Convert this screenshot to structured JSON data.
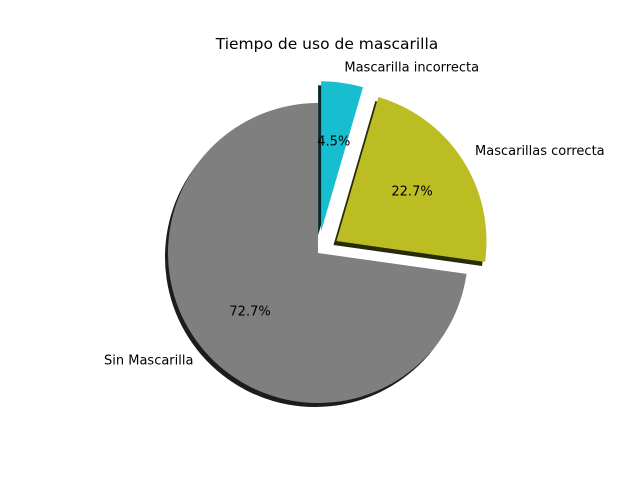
{
  "chart_data": {
    "type": "pie",
    "title": "Tiempo de uso de mascarilla",
    "slices": [
      {
        "label": "Mascarilla incorrecta",
        "value": 4.5,
        "pct_label": "4.5%",
        "color": "#17becf",
        "exploded": true
      },
      {
        "label": "Mascarillas correcta",
        "value": 22.7,
        "pct_label": "22.7%",
        "color": "#bcbd22",
        "exploded": true
      },
      {
        "label": "Sin Mascarilla",
        "value": 72.7,
        "pct_label": "72.7%",
        "color": "#7f7f7f",
        "exploded": false
      }
    ],
    "start_angle_deg": 90,
    "direction": "clockwise",
    "shadow": true,
    "legend": "none"
  }
}
